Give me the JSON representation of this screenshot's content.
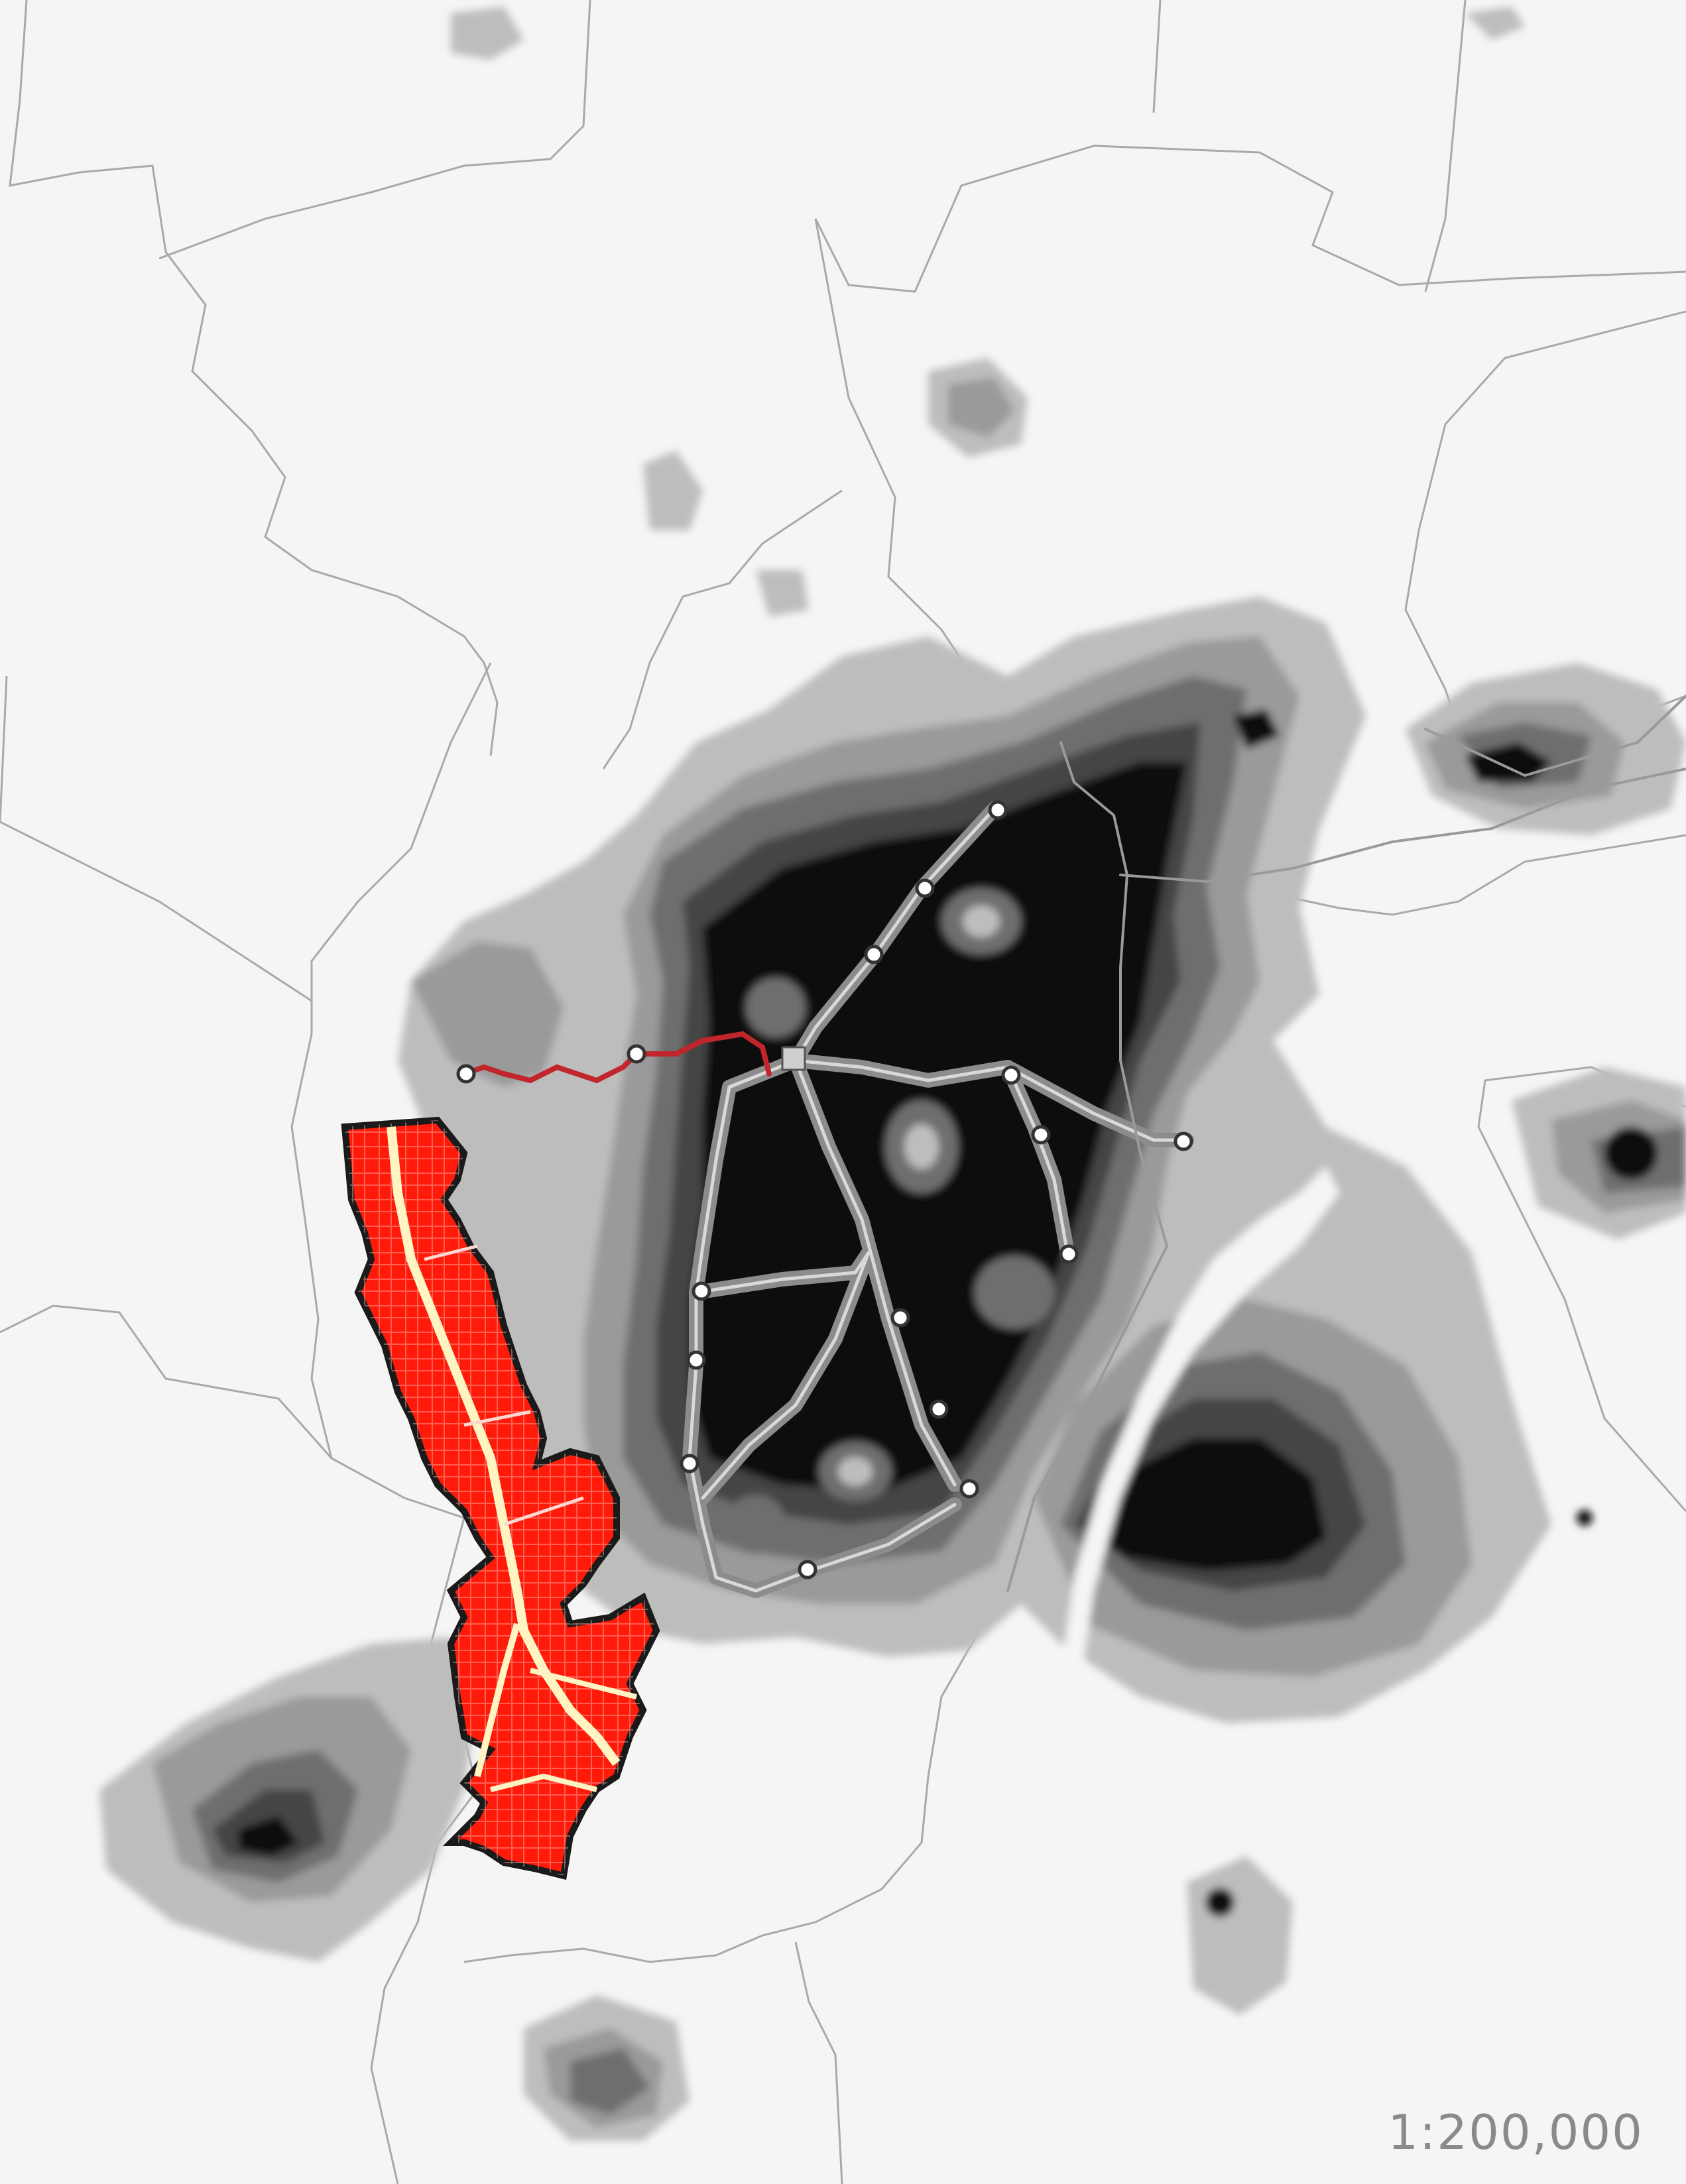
{
  "map": {
    "scale_label": "1:200,000",
    "colors": {
      "background": "#f5f5f5",
      "boundary": "#a9a9a9",
      "density_levels": [
        "#bdbdbd",
        "#9a9a9a",
        "#6e6e6e",
        "#444444",
        "#0a0a0a"
      ],
      "highlight_district": "#ff1a0a",
      "district_roads": "#ffd6d0",
      "district_main_road": "#fff4c2",
      "metro_line": "#8c8c8c",
      "new_line": "#c0262b",
      "station_fill": "#ffffff",
      "station_ring": "#333333"
    },
    "layers": [
      "administrative-boundaries",
      "population-density",
      "metro-network",
      "highlighted-district",
      "metro-extension"
    ]
  }
}
